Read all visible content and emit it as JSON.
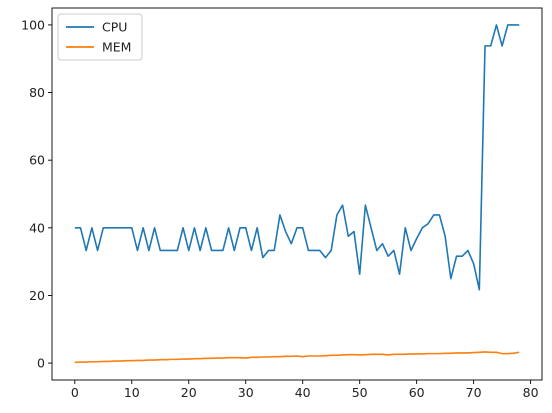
{
  "chart_data": {
    "type": "line",
    "title": "",
    "xlabel": "",
    "ylabel": "",
    "xlim": [
      -4,
      82
    ],
    "ylim": [
      -5,
      105
    ],
    "x_ticks": [
      0,
      10,
      20,
      30,
      40,
      50,
      60,
      70,
      80
    ],
    "y_ticks": [
      0,
      20,
      40,
      60,
      80,
      100
    ],
    "grid": false,
    "legend": "upper-left",
    "series": [
      {
        "name": "CPU",
        "color": "#1f77b4",
        "x": [
          0,
          1,
          2,
          3,
          4,
          5,
          6,
          7,
          8,
          9,
          10,
          11,
          12,
          13,
          14,
          15,
          16,
          17,
          18,
          19,
          20,
          21,
          22,
          23,
          24,
          25,
          26,
          27,
          28,
          29,
          30,
          31,
          32,
          33,
          34,
          35,
          36,
          37,
          38,
          39,
          40,
          41,
          42,
          43,
          44,
          45,
          46,
          47,
          48,
          49,
          50,
          51,
          52,
          53,
          54,
          55,
          56,
          57,
          58,
          59,
          60,
          61,
          62,
          63,
          64,
          65,
          66,
          67,
          68,
          69,
          70,
          71,
          72,
          73,
          74,
          75,
          76,
          77,
          78
        ],
        "values": [
          40,
          40,
          33.3,
          40,
          33.3,
          40,
          40,
          40,
          40,
          40,
          40,
          33.3,
          40,
          33.3,
          40,
          33.3,
          33.3,
          33.3,
          33.3,
          40,
          33.3,
          40,
          33.3,
          40,
          33.3,
          33.3,
          33.3,
          40,
          33.3,
          40,
          40,
          33.3,
          40,
          31.2,
          33.3,
          33.3,
          43.8,
          38.9,
          35.3,
          40,
          40,
          33.3,
          33.3,
          33.3,
          31.2,
          33.3,
          43.8,
          46.7,
          37.5,
          38.9,
          26.3,
          46.7,
          40,
          33.3,
          35.3,
          31.6,
          33.3,
          26.3,
          40,
          33.3,
          36.8,
          40,
          41.2,
          43.8,
          43.8,
          37.5,
          25,
          31.6,
          31.6,
          33.3,
          29.4,
          21.7,
          93.8,
          93.8,
          100,
          93.8,
          100,
          100,
          100
        ]
      },
      {
        "name": "MEM",
        "color": "#ff7f0e",
        "x": [
          0,
          1,
          2,
          3,
          4,
          5,
          6,
          7,
          8,
          9,
          10,
          11,
          12,
          13,
          14,
          15,
          16,
          17,
          18,
          19,
          20,
          21,
          22,
          23,
          24,
          25,
          26,
          27,
          28,
          29,
          30,
          31,
          32,
          33,
          34,
          35,
          36,
          37,
          38,
          39,
          40,
          41,
          42,
          43,
          44,
          45,
          46,
          47,
          48,
          49,
          50,
          51,
          52,
          53,
          54,
          55,
          56,
          57,
          58,
          59,
          60,
          61,
          62,
          63,
          64,
          65,
          66,
          67,
          68,
          69,
          70,
          71,
          72,
          73,
          74,
          75,
          76,
          77,
          78
        ],
        "values": [
          0.2,
          0.3,
          0.3,
          0.4,
          0.4,
          0.5,
          0.5,
          0.6,
          0.6,
          0.7,
          0.7,
          0.8,
          0.8,
          0.9,
          0.9,
          1.0,
          1.0,
          1.1,
          1.1,
          1.2,
          1.2,
          1.3,
          1.3,
          1.4,
          1.4,
          1.5,
          1.5,
          1.6,
          1.6,
          1.6,
          1.5,
          1.7,
          1.7,
          1.8,
          1.8,
          1.9,
          1.9,
          2.0,
          2.0,
          2.1,
          1.9,
          2.1,
          2.1,
          2.1,
          2.2,
          2.3,
          2.3,
          2.4,
          2.5,
          2.5,
          2.4,
          2.5,
          2.6,
          2.6,
          2.6,
          2.4,
          2.6,
          2.6,
          2.6,
          2.7,
          2.7,
          2.7,
          2.8,
          2.8,
          2.8,
          2.9,
          2.9,
          3.0,
          3.0,
          3.0,
          3.1,
          3.2,
          3.3,
          3.2,
          3.2,
          2.8,
          2.8,
          2.9,
          3.2
        ]
      }
    ]
  }
}
